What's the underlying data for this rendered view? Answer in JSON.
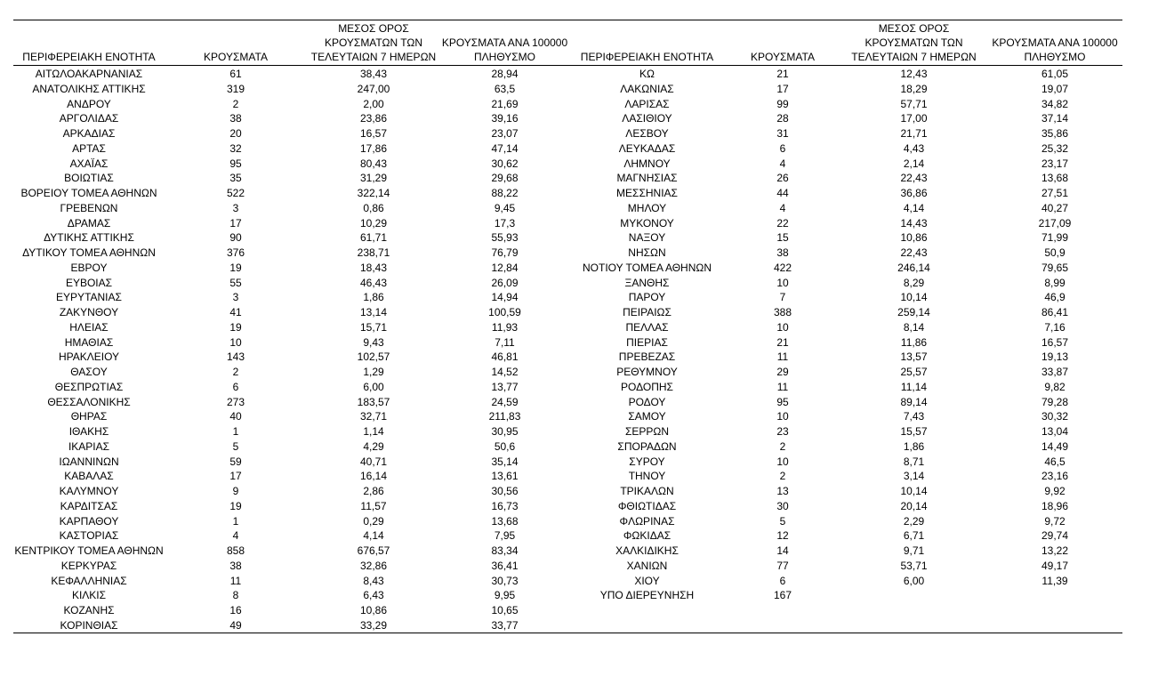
{
  "headers": {
    "region": "ΠΕΡΙΦΕΡΕΙΑΚΗ ΕΝΟΤΗΤΑ",
    "cases": "ΚΡΟΥΣΜΑΤΑ",
    "avg7": "ΜΕΣΟΣ ΟΡΟΣ\nΚΡΟΥΣΜΑΤΩΝ ΤΩΝ\nΤΕΛΕΥΤΑΙΩΝ 7 ΗΜΕΡΩΝ",
    "per100k": "ΚΡΟΥΣΜΑΤΑ ΑΝΑ 100000\nΠΛΗΘΥΣΜΟ"
  },
  "left_rows": [
    [
      "ΑΙΤΩΛΟΑΚΑΡΝΑΝΙΑΣ",
      "61",
      "38,43",
      "28,94"
    ],
    [
      "ΑΝΑΤΟΛΙΚΗΣ ΑΤΤΙΚΗΣ",
      "319",
      "247,00",
      "63,5"
    ],
    [
      "ΑΝΔΡΟΥ",
      "2",
      "2,00",
      "21,69"
    ],
    [
      "ΑΡΓΟΛΙΔΑΣ",
      "38",
      "23,86",
      "39,16"
    ],
    [
      "ΑΡΚΑΔΙΑΣ",
      "20",
      "16,57",
      "23,07"
    ],
    [
      "ΑΡΤΑΣ",
      "32",
      "17,86",
      "47,14"
    ],
    [
      "ΑΧΑΪΑΣ",
      "95",
      "80,43",
      "30,62"
    ],
    [
      "ΒΟΙΩΤΙΑΣ",
      "35",
      "31,29",
      "29,68"
    ],
    [
      "ΒΟΡΕΙΟΥ ΤΟΜΕΑ ΑΘΗΝΩΝ",
      "522",
      "322,14",
      "88,22"
    ],
    [
      "ΓΡΕΒΕΝΩΝ",
      "3",
      "0,86",
      "9,45"
    ],
    [
      "ΔΡΑΜΑΣ",
      "17",
      "10,29",
      "17,3"
    ],
    [
      "ΔΥΤΙΚΗΣ ΑΤΤΙΚΗΣ",
      "90",
      "61,71",
      "55,93"
    ],
    [
      "ΔΥΤΙΚΟΥ ΤΟΜΕΑ ΑΘΗΝΩΝ",
      "376",
      "238,71",
      "76,79"
    ],
    [
      "ΕΒΡΟΥ",
      "19",
      "18,43",
      "12,84"
    ],
    [
      "ΕΥΒΟΙΑΣ",
      "55",
      "46,43",
      "26,09"
    ],
    [
      "ΕΥΡΥΤΑΝΙΑΣ",
      "3",
      "1,86",
      "14,94"
    ],
    [
      "ΖΑΚΥΝΘΟΥ",
      "41",
      "13,14",
      "100,59"
    ],
    [
      "ΗΛΕΙΑΣ",
      "19",
      "15,71",
      "11,93"
    ],
    [
      "ΗΜΑΘΙΑΣ",
      "10",
      "9,43",
      "7,11"
    ],
    [
      "ΗΡΑΚΛΕΙΟΥ",
      "143",
      "102,57",
      "46,81"
    ],
    [
      "ΘΑΣΟΥ",
      "2",
      "1,29",
      "14,52"
    ],
    [
      "ΘΕΣΠΡΩΤΙΑΣ",
      "6",
      "6,00",
      "13,77"
    ],
    [
      "ΘΕΣΣΑΛΟΝΙΚΗΣ",
      "273",
      "183,57",
      "24,59"
    ],
    [
      "ΘΗΡΑΣ",
      "40",
      "32,71",
      "211,83"
    ],
    [
      "ΙΘΑΚΗΣ",
      "1",
      "1,14",
      "30,95"
    ],
    [
      "ΙΚΑΡΙΑΣ",
      "5",
      "4,29",
      "50,6"
    ],
    [
      "ΙΩΑΝΝΙΝΩΝ",
      "59",
      "40,71",
      "35,14"
    ],
    [
      "ΚΑΒΑΛΑΣ",
      "17",
      "16,14",
      "13,61"
    ],
    [
      "ΚΑΛΥΜΝΟΥ",
      "9",
      "2,86",
      "30,56"
    ],
    [
      "ΚΑΡΔΙΤΣΑΣ",
      "19",
      "11,57",
      "16,73"
    ],
    [
      "ΚΑΡΠΑΘΟΥ",
      "1",
      "0,29",
      "13,68"
    ],
    [
      "ΚΑΣΤΟΡΙΑΣ",
      "4",
      "4,14",
      "7,95"
    ],
    [
      "ΚΕΝΤΡΙΚΟΥ ΤΟΜΕΑ ΑΘΗΝΩΝ",
      "858",
      "676,57",
      "83,34"
    ],
    [
      "ΚΕΡΚΥΡΑΣ",
      "38",
      "32,86",
      "36,41"
    ],
    [
      "ΚΕΦΑΛΛΗΝΙΑΣ",
      "11",
      "8,43",
      "30,73"
    ],
    [
      "ΚΙΛΚΙΣ",
      "8",
      "6,43",
      "9,95"
    ],
    [
      "ΚΟΖΑΝΗΣ",
      "16",
      "10,86",
      "10,65"
    ],
    [
      "ΚΟΡΙΝΘΙΑΣ",
      "49",
      "33,29",
      "33,77"
    ]
  ],
  "right_rows": [
    [
      "ΚΩ",
      "21",
      "12,43",
      "61,05"
    ],
    [
      "ΛΑΚΩΝΙΑΣ",
      "17",
      "18,29",
      "19,07"
    ],
    [
      "ΛΑΡΙΣΑΣ",
      "99",
      "57,71",
      "34,82"
    ],
    [
      "ΛΑΣΙΘΙΟΥ",
      "28",
      "17,00",
      "37,14"
    ],
    [
      "ΛΕΣΒΟΥ",
      "31",
      "21,71",
      "35,86"
    ],
    [
      "ΛΕΥΚΑΔΑΣ",
      "6",
      "4,43",
      "25,32"
    ],
    [
      "ΛΗΜΝΟΥ",
      "4",
      "2,14",
      "23,17"
    ],
    [
      "ΜΑΓΝΗΣΙΑΣ",
      "26",
      "22,43",
      "13,68"
    ],
    [
      "ΜΕΣΣΗΝΙΑΣ",
      "44",
      "36,86",
      "27,51"
    ],
    [
      "ΜΗΛΟΥ",
      "4",
      "4,14",
      "40,27"
    ],
    [
      "ΜΥΚΟΝΟΥ",
      "22",
      "14,43",
      "217,09"
    ],
    [
      "ΝΑΞΟΥ",
      "15",
      "10,86",
      "71,99"
    ],
    [
      "ΝΗΣΩΝ",
      "38",
      "22,43",
      "50,9"
    ],
    [
      "ΝΟΤΙΟΥ ΤΟΜΕΑ ΑΘΗΝΩΝ",
      "422",
      "246,14",
      "79,65"
    ],
    [
      "ΞΑΝΘΗΣ",
      "10",
      "8,29",
      "8,99"
    ],
    [
      "ΠΑΡΟΥ",
      "7",
      "10,14",
      "46,9"
    ],
    [
      "ΠΕΙΡΑΙΩΣ",
      "388",
      "259,14",
      "86,41"
    ],
    [
      "ΠΕΛΛΑΣ",
      "10",
      "8,14",
      "7,16"
    ],
    [
      "ΠΙΕΡΙΑΣ",
      "21",
      "11,86",
      "16,57"
    ],
    [
      "ΠΡΕΒΕΖΑΣ",
      "11",
      "13,57",
      "19,13"
    ],
    [
      "ΡΕΘΥΜΝΟΥ",
      "29",
      "25,57",
      "33,87"
    ],
    [
      "ΡΟΔΟΠΗΣ",
      "11",
      "11,14",
      "9,82"
    ],
    [
      "ΡΟΔΟΥ",
      "95",
      "89,14",
      "79,28"
    ],
    [
      "ΣΑΜΟΥ",
      "10",
      "7,43",
      "30,32"
    ],
    [
      "ΣΕΡΡΩΝ",
      "23",
      "15,57",
      "13,04"
    ],
    [
      "ΣΠΟΡΑΔΩΝ",
      "2",
      "1,86",
      "14,49"
    ],
    [
      "ΣΥΡΟΥ",
      "10",
      "8,71",
      "46,5"
    ],
    [
      "ΤΗΝΟΥ",
      "2",
      "3,14",
      "23,16"
    ],
    [
      "ΤΡΙΚΑΛΩΝ",
      "13",
      "10,14",
      "9,92"
    ],
    [
      "ΦΘΙΩΤΙΔΑΣ",
      "30",
      "20,14",
      "18,96"
    ],
    [
      "ΦΛΩΡΙΝΑΣ",
      "5",
      "2,29",
      "9,72"
    ],
    [
      "ΦΩΚΙΔΑΣ",
      "12",
      "6,71",
      "29,74"
    ],
    [
      "ΧΑΛΚΙΔΙΚΗΣ",
      "14",
      "9,71",
      "13,22"
    ],
    [
      "ΧΑΝΙΩΝ",
      "77",
      "53,71",
      "49,17"
    ],
    [
      "ΧΙΟΥ",
      "6",
      "6,00",
      "11,39"
    ],
    [
      "ΥΠΟ ΔΙΕΡΕΥΝΗΣΗ",
      "167",
      "",
      ""
    ]
  ]
}
